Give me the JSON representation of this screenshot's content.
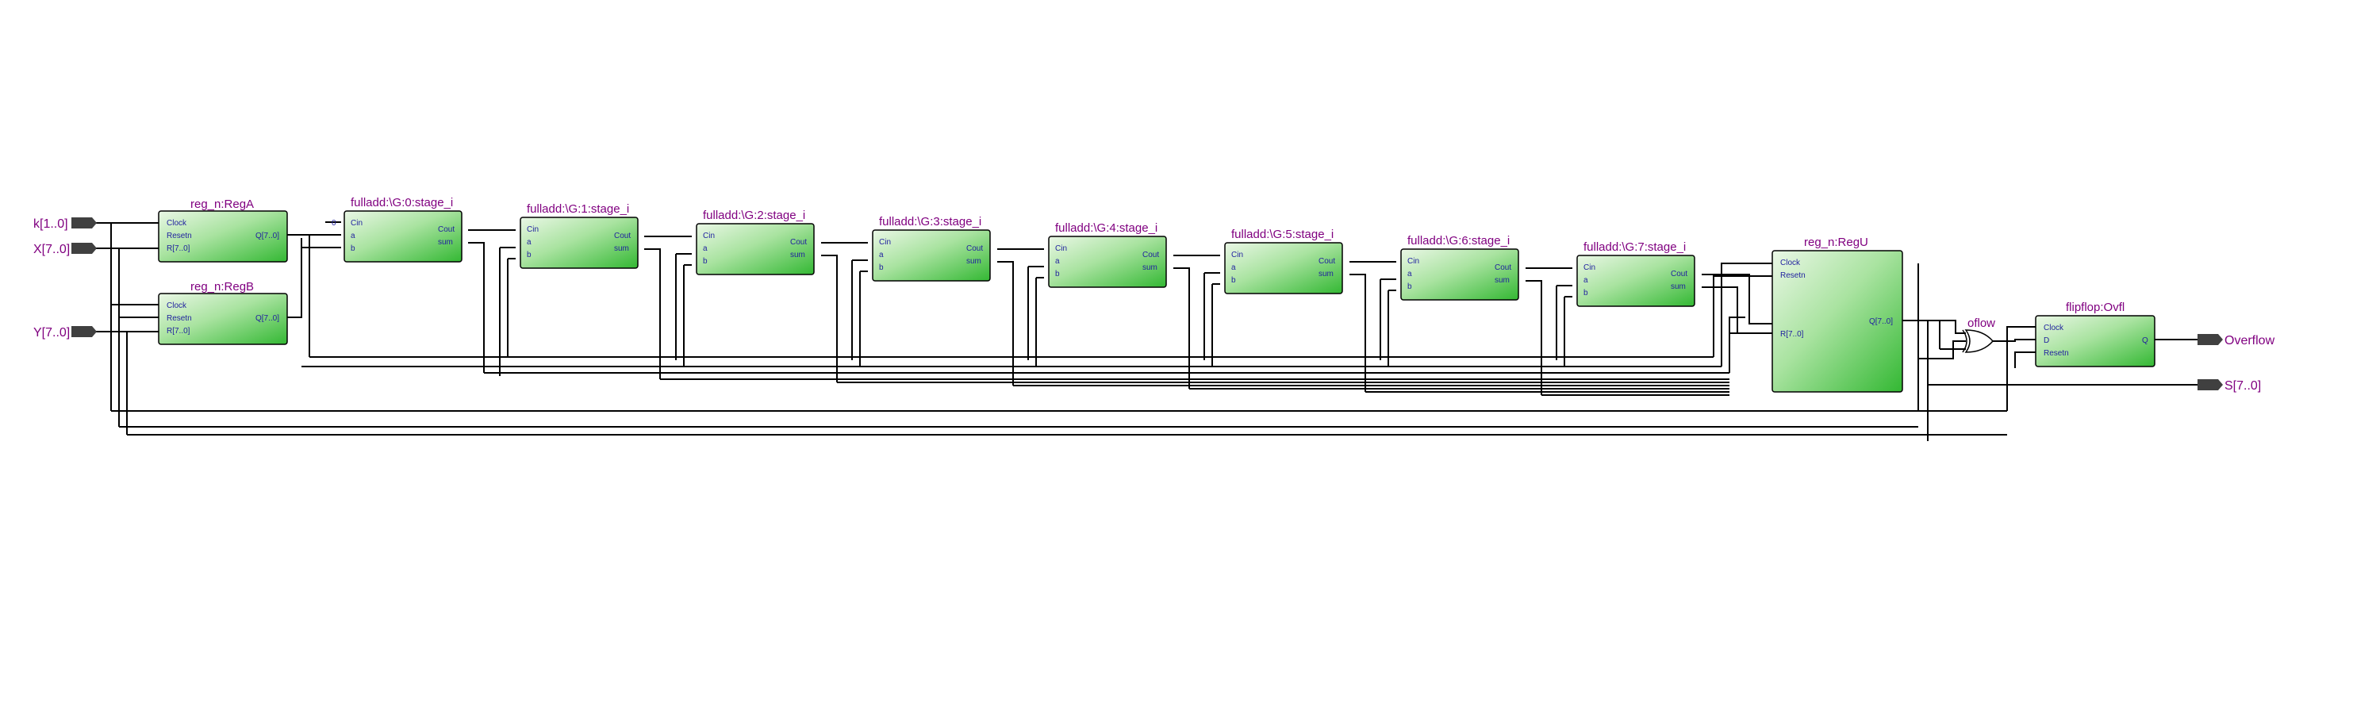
{
  "inputs": {
    "k": "k[1..0]",
    "x": "X[7..0]",
    "y": "Y[7..0]"
  },
  "outputs": {
    "overflow": "Overflow",
    "sum": "S[7..0]"
  },
  "reg_a": {
    "title": "reg_n:RegA",
    "ports": [
      "Clock",
      "Resetn",
      "R[7..0]"
    ],
    "out": "Q[7..0]"
  },
  "reg_b": {
    "title": "reg_n:RegB",
    "ports": [
      "Clock",
      "Resetn",
      "R[7..0]"
    ],
    "out": "Q[7..0]"
  },
  "stages": [
    {
      "title": "fulladd:\\G:0:stage_i"
    },
    {
      "title": "fulladd:\\G:1:stage_i"
    },
    {
      "title": "fulladd:\\G:2:stage_i"
    },
    {
      "title": "fulladd:\\G:3:stage_i"
    },
    {
      "title": "fulladd:\\G:4:stage_i"
    },
    {
      "title": "fulladd:\\G:5:stage_i"
    },
    {
      "title": "fulladd:\\G:6:stage_i"
    },
    {
      "title": "fulladd:\\G:7:stage_i"
    }
  ],
  "stage_ports": {
    "cin": "Cin",
    "a": "a",
    "b": "b",
    "cout": "Cout",
    "sum": "sum"
  },
  "carry_in_const": "0",
  "reg_u": {
    "title": "reg_n:RegU",
    "ports": [
      "Clock",
      "Resetn",
      "R[7..0]"
    ],
    "out": "Q[7..0]"
  },
  "oflow_gate": {
    "label": "oflow"
  },
  "flipflop": {
    "title": "flipflop:Ovfl",
    "ports": [
      "Clock",
      "D",
      "Resetn"
    ],
    "out": "Q"
  },
  "colors": {
    "block_fill_light": "#e6f5e2",
    "block_fill_dark": "#3fbf3f",
    "title": "#800080",
    "port": "#1f1f9f"
  }
}
